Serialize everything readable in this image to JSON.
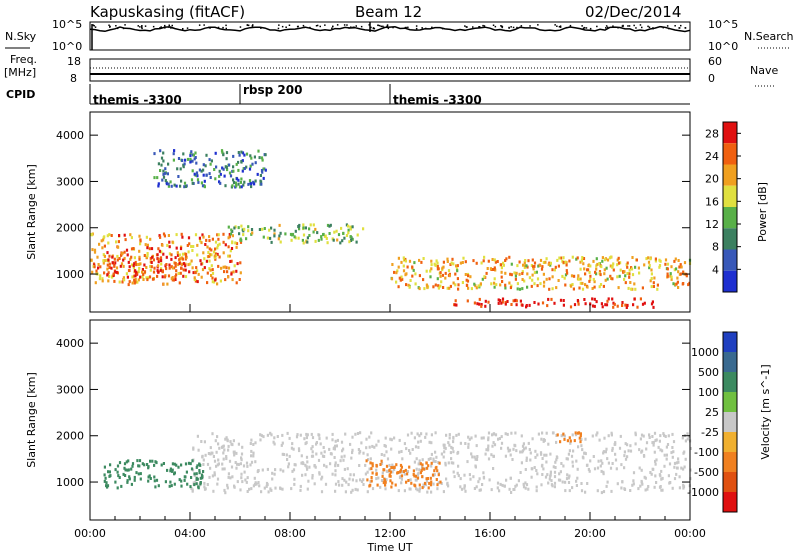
{
  "header": {
    "station": "Kapuskasing (fitACF)",
    "beam": "Beam 12",
    "date": "02/Dec/2014"
  },
  "top_panels": {
    "nsky_label": "N.Sky",
    "nsky_ticks": [
      "10^5",
      "10^0"
    ],
    "nsearch_label": "N.Search",
    "nsearch_ticks": [
      "10^5",
      "10^0"
    ],
    "freq_label": "Freq.",
    "freq_unit": "[MHz]",
    "freq_ticks": [
      "18",
      "8"
    ],
    "nave_label": "Nave",
    "nave_ticks": [
      "60",
      "0"
    ],
    "cpid_label": "CPID",
    "cpid_segments": [
      {
        "start_hour": 0,
        "end_hour": 6,
        "label": "themis -3300"
      },
      {
        "start_hour": 6,
        "end_hour": 12,
        "label": "rbsp 200"
      },
      {
        "start_hour": 12,
        "end_hour": 24,
        "label": "themis -3300"
      }
    ]
  },
  "chart_data": [
    {
      "type": "heatmap",
      "title": "",
      "xlabel": "Time UT",
      "ylabel": "Slant Range [km]",
      "x_range_hours": [
        0,
        24
      ],
      "x_ticks": [
        "00:00",
        "04:00",
        "08:00",
        "12:00",
        "16:00",
        "20:00",
        "00:00"
      ],
      "ylim": [
        180,
        4500
      ],
      "y_ticks": [
        1000,
        2000,
        3000,
        4000
      ],
      "colorbar": {
        "label": "Power [dB]",
        "ticks": [
          4,
          8,
          12,
          16,
          20,
          24,
          28
        ],
        "range": [
          0,
          30
        ]
      },
      "regions": [
        {
          "name": "near-range band",
          "hours": [
            0,
            6
          ],
          "range_km": [
            800,
            1900
          ],
          "power_db": 22
        },
        {
          "name": "strong echoes early",
          "hours": [
            0.5,
            3.8
          ],
          "range_km": [
            950,
            1400
          ],
          "power_db": 28
        },
        {
          "name": "arc 08 UT",
          "hours": [
            5.5,
            11
          ],
          "range_km": [
            1700,
            2100
          ],
          "power_db": 14
        },
        {
          "name": "high-range cloud",
          "hours": [
            2.5,
            7
          ],
          "range_km": [
            2900,
            3700
          ],
          "power_db": 8
        },
        {
          "name": "evening band",
          "hours": [
            12,
            24
          ],
          "range_km": [
            700,
            1400
          ],
          "power_db": 20
        },
        {
          "name": "close-range strong",
          "hours": [
            14.5,
            22.5
          ],
          "range_km": [
            300,
            500
          ],
          "power_db": 29
        }
      ]
    },
    {
      "type": "heatmap",
      "title": "",
      "xlabel": "Time UT",
      "ylabel": "Slant Range [km]",
      "x_range_hours": [
        0,
        24
      ],
      "x_ticks": [
        "00:00",
        "04:00",
        "08:00",
        "12:00",
        "16:00",
        "20:00",
        "00:00"
      ],
      "ylim": [
        180,
        4500
      ],
      "y_ticks": [
        1000,
        2000,
        3000,
        4000
      ],
      "colorbar": {
        "label": "Velocity [m s^-1]",
        "ticks": [
          "1000",
          "500",
          "100",
          "25",
          "-25",
          "-100",
          "-500",
          "-1000"
        ]
      },
      "regions": [
        {
          "name": "ground scatter",
          "hours": [
            4,
            24
          ],
          "range_km": [
            800,
            2100
          ],
          "velocity": 0
        },
        {
          "name": "early positive flow",
          "hours": [
            0.5,
            4.5
          ],
          "range_km": [
            900,
            1500
          ],
          "velocity": 200
        },
        {
          "name": "12-14 UT negative",
          "hours": [
            11,
            14
          ],
          "range_km": [
            900,
            1500
          ],
          "velocity": -200
        },
        {
          "name": "evening negative",
          "hours": [
            18.5,
            20
          ],
          "range_km": [
            1900,
            2100
          ],
          "velocity": -300
        }
      ]
    }
  ]
}
